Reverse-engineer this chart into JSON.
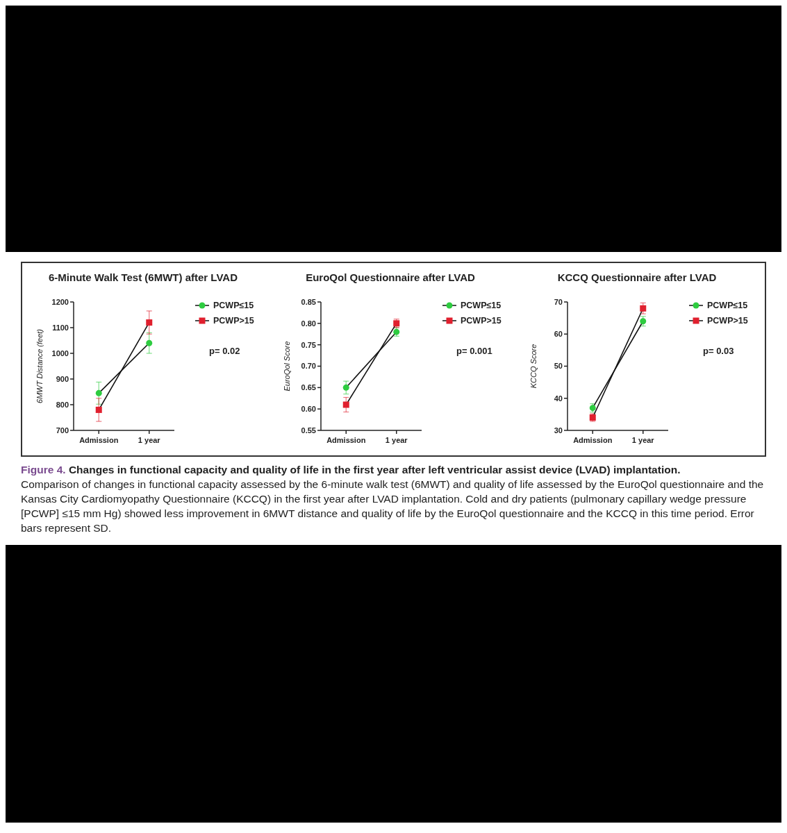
{
  "chart_data": [
    {
      "type": "line",
      "title": "6-Minute Walk Test (6MWT) after LVAD",
      "ylabel": "6MWT Distance (feet)",
      "categories": [
        "Admission",
        "1 year"
      ],
      "ylim": [
        700,
        1200
      ],
      "yticks": [
        700,
        800,
        900,
        1000,
        1100,
        1200
      ],
      "legend": "right",
      "annotations": [
        "p= 0.02"
      ],
      "series": [
        {
          "name": "PCWP≤15",
          "color": "#2ecc40",
          "marker": "circle",
          "values": [
            845,
            1040
          ],
          "errors": [
            43,
            40
          ]
        },
        {
          "name": "PCWP>15",
          "color": "#e0202e",
          "marker": "square",
          "values": [
            780,
            1120
          ],
          "errors": [
            45,
            45
          ]
        }
      ]
    },
    {
      "type": "line",
      "title": "EuroQol Questionnaire after LVAD",
      "ylabel": "EuroQol Score",
      "categories": [
        "Admission",
        "1 year"
      ],
      "ylim": [
        0.55,
        0.85
      ],
      "yticks": [
        0.55,
        {
          "value": 0.6,
          "label": "0.60"
        },
        0.65,
        {
          "value": 0.7,
          "label": "0.70"
        },
        0.75,
        {
          "value": 0.8,
          "label": "0.80"
        },
        0.85
      ],
      "legend": "right",
      "annotations": [
        "p= 0.001"
      ],
      "series": [
        {
          "name": "PCWP≤15",
          "color": "#2ecc40",
          "marker": "circle",
          "values": [
            0.65,
            0.78
          ],
          "errors": [
            0.015,
            0.01
          ]
        },
        {
          "name": "PCWP>15",
          "color": "#e0202e",
          "marker": "square",
          "values": [
            0.61,
            0.8
          ],
          "errors": [
            0.017,
            0.01
          ]
        }
      ]
    },
    {
      "type": "line",
      "title": "KCCQ Questionnaire after LVAD",
      "ylabel": "KCCQ Score",
      "categories": [
        "Admission",
        "1 year"
      ],
      "ylim": [
        30,
        70
      ],
      "yticks": [
        30,
        40,
        50,
        60,
        70
      ],
      "legend": "right",
      "annotations": [
        "p= 0.03",
        "Figure 4.",
        "Changes in functional capacity and quality of life in the first year after left ventricular assist device (LVAD) implantation.",
        "Comparison of changes in functional capacity assessed by the 6-minute walk test (6MWT) and quality of life assessed by the EuroQol questionnaire and the Kansas City Cardiomyopathy Questionnaire (KCCQ) in the first year after LVAD implantation. Cold and dry patients (pulmonary capillary wedge pressure [PCWP] ≤15 mm Hg) showed less improvement in 6MWT distance and quality of life by the EuroQol questionnaire and the KCCQ in this time period. Error bars represent SD."
      ],
      "series": [
        {
          "name": "PCWP≤15",
          "color": "#2ecc40",
          "marker": "circle",
          "values": [
            37,
            64
          ],
          "errors": [
            1.3,
            1.5
          ]
        },
        {
          "name": "PCWP>15",
          "color": "#e0202e",
          "marker": "square",
          "values": [
            34,
            68
          ],
          "errors": [
            1.2,
            1.7
          ]
        }
      ]
    }
  ]
}
